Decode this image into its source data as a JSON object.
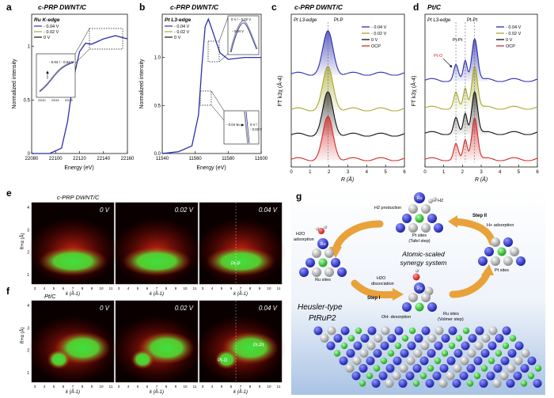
{
  "colors": {
    "blue": "#2b2fb0",
    "olive": "#a9a832",
    "black": "#111111",
    "red": "#d42a2a",
    "gray": "#7d7d7d"
  },
  "panels": {
    "a": {
      "letter": "a",
      "title": "c-PRP DWNT/C",
      "box_title": "Ru K-edge",
      "legend": [
        "- 0.04 V",
        "- 0.02 V",
        "0 V"
      ],
      "inset_label": "- 0.02 / - 0.04 V",
      "inset_ticks": [
        "22110",
        "22115",
        "22120"
      ]
    },
    "b": {
      "letter": "b",
      "title": "c-PRP DWNT/C",
      "box_title": "Pt L3-edge",
      "legend": [
        "- 0.04 V",
        "- 0.02 V",
        "0 V"
      ],
      "inset_top_label": "0 V / - 0.02 V",
      "inset_top_label2": "- 0.04 V",
      "inset_bot_label": "- 0.04 V",
      "inset_bot_label2": "0 V /",
      "inset_bot_label3": "- 0.02 V",
      "inset_ticks": [
        "11562",
        "11566",
        "11570"
      ]
    },
    "c": {
      "letter": "c",
      "title": "c-PRP DWNT/C",
      "sub": "Pt L3-edge",
      "peak": "Pt-P",
      "legend": [
        "- 0.04 V",
        "- 0.02 V",
        "0 V",
        "OCP"
      ]
    },
    "d": {
      "letter": "d",
      "title": "Pt/C",
      "sub": "Pt L3-edge",
      "peak": "Pt-Pt",
      "peak2": "Pt-Pt",
      "peak3": "Pt-O",
      "legend": [
        "- 0.04 V",
        "- 0.02 V",
        "0 V",
        "OCP"
      ]
    },
    "e": {
      "letter": "e",
      "title": "c-PRP DWNT/C",
      "maps": [
        "0 V",
        "0.02 V",
        "0.04 V"
      ],
      "annot": "Pt-P"
    },
    "f": {
      "letter": "f",
      "title": "Pt/C",
      "maps": [
        "0 V",
        "0.02 V",
        "0.04 V"
      ],
      "annot1": "Pt-O",
      "annot2": "Pt-Pt"
    },
    "g": {
      "letter": "g",
      "h2_label": "H2",
      "h2_production": "H2 production",
      "pt_sites_tafel": "Pt sites",
      "tafel_step": "(Tafel step)",
      "step2": "Step II",
      "h_adsorption": "H+ adsorption",
      "h2o_adsorption": "H2O",
      "h2o_adsorption2": "adsorption",
      "center_title": "Atomic-scaled",
      "center_title2": "synergy system",
      "ru_sites": "Ru sites",
      "pt_sites": "Pt sites",
      "h2o_dissociation": "H2O",
      "h2o_dissociation2": "dissociation",
      "step1": "Step I",
      "oh_desorption": "OH- desorption",
      "ru_sites_volmer": "Ru sites",
      "volmer_step": "(Volmer step)",
      "heusler": "Heusler-type",
      "heusler2": "PtRuP2",
      "atom_ru": "Ru",
      "atom_pt": "Pt",
      "atom_p": "P"
    }
  },
  "chart_data": [
    {
      "panel": "a",
      "type": "line",
      "title": "Ru K-edge",
      "xlabel": "Energy (eV)",
      "ylabel": "Normalized intensity",
      "xlim": [
        22080,
        22160
      ],
      "ylim": [
        0,
        1.3
      ],
      "xticks": [
        "22080",
        "22100",
        "22120",
        "22140",
        "22160"
      ],
      "yticks": [
        "0",
        "0.5",
        "1"
      ],
      "series": [
        {
          "name": "- 0.04 V"
        },
        {
          "name": "- 0.02 V"
        },
        {
          "name": "0 V"
        }
      ],
      "x": [
        22080,
        22095,
        22105,
        22110,
        22115,
        22120,
        22125,
        22130,
        22140,
        22150,
        22160
      ],
      "y": [
        0.0,
        0.0,
        0.05,
        0.3,
        0.7,
        0.95,
        1.03,
        1.02,
        1.07,
        1.1,
        1.07
      ]
    },
    {
      "panel": "b",
      "type": "line",
      "title": "Pt L3-edge",
      "xlabel": "Energy (eV)",
      "ylabel": "Normalized intensity",
      "xlim": [
        11540,
        11600
      ],
      "ylim": [
        0,
        1.45
      ],
      "xticks": [
        "11540",
        "11560",
        "11580",
        "11600"
      ],
      "yticks": [
        "0.0",
        "0.5",
        "1.0"
      ],
      "series": [
        {
          "name": "- 0.04 V"
        },
        {
          "name": "- 0.02 V"
        },
        {
          "name": "0 V"
        }
      ],
      "x": [
        11540,
        11550,
        11558,
        11562,
        11564,
        11566,
        11568,
        11570,
        11575,
        11580,
        11590,
        11600
      ],
      "y": [
        0.0,
        0.02,
        0.08,
        0.4,
        0.9,
        1.32,
        1.4,
        1.3,
        1.05,
        0.98,
        1.0,
        1.0
      ]
    },
    {
      "panel": "c",
      "type": "line",
      "xlabel": "R (Å)",
      "ylabel": "FT k3χ (Å-4)",
      "xlim": [
        0,
        6
      ],
      "xticks": [
        "0",
        "1",
        "2",
        "3",
        "4",
        "5",
        "6"
      ],
      "series": [
        {
          "name": "- 0.04 V"
        },
        {
          "name": "- 0.02 V"
        },
        {
          "name": "0 V"
        },
        {
          "name": "OCP"
        }
      ],
      "peak_r": 1.95
    },
    {
      "panel": "d",
      "type": "line",
      "xlabel": "R (Å)",
      "ylabel": "FT k3χ (Å-4)",
      "xlim": [
        0,
        6
      ],
      "xticks": [
        "0",
        "1",
        "2",
        "3",
        "4",
        "5",
        "6"
      ],
      "series": [
        {
          "name": "- 0.04 V"
        },
        {
          "name": "- 0.02 V"
        },
        {
          "name": "0 V"
        },
        {
          "name": "OCP"
        }
      ],
      "peaks_r": [
        1.65,
        2.15,
        2.65
      ]
    },
    {
      "panel": "e",
      "type": "heatmap",
      "xlabel": "k (Å-1)",
      "ylabel": "R+α (Å)",
      "xticks": [
        "3",
        "4",
        "5",
        "6",
        "7",
        "8",
        "9",
        "10",
        "11"
      ],
      "yticks": [
        "1",
        "2",
        "3",
        "4"
      ]
    },
    {
      "panel": "f",
      "type": "heatmap",
      "xlabel": "k (Å-1)",
      "ylabel": "R+α (Å)",
      "xticks": [
        "3",
        "4",
        "5",
        "6",
        "7",
        "8",
        "9",
        "10",
        "11"
      ],
      "yticks": [
        "1",
        "2",
        "3",
        "4"
      ]
    }
  ]
}
